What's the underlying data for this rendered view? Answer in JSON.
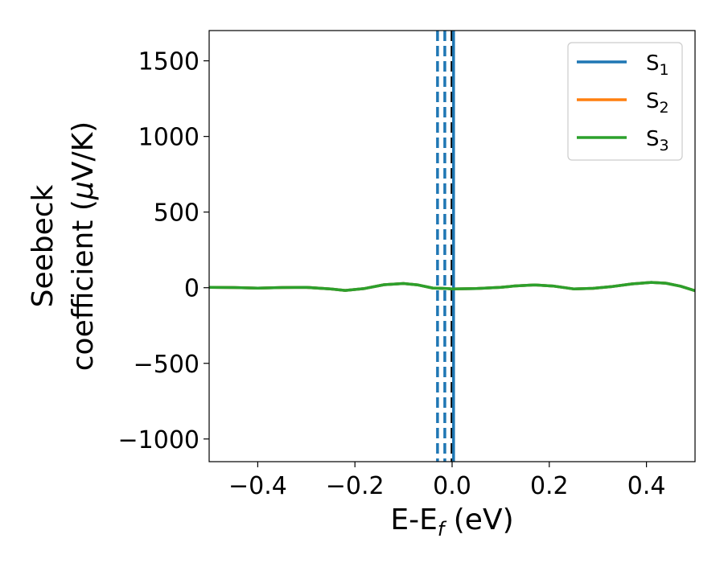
{
  "chart_data": {
    "type": "line",
    "title": "",
    "xlabel": "E-E",
    "xlabel_sub": "f",
    "xlabel_unit": " (eV)",
    "ylabel_line1": "Seebeck",
    "ylabel_line2": "coefficient  (",
    "ylabel_mu": "μ",
    "ylabel_unit": "V/K)",
    "xlim": [
      -0.5,
      0.5
    ],
    "ylim": [
      -1150,
      1700
    ],
    "xticks": [
      -0.4,
      -0.2,
      0.0,
      0.2,
      0.4
    ],
    "xtick_labels": [
      "−0.4",
      "−0.2",
      "0.0",
      "0.2",
      "0.4"
    ],
    "yticks": [
      -1000,
      -500,
      0,
      500,
      1000,
      1500
    ],
    "ytick_labels": [
      "−1000",
      "−500",
      "0",
      "500",
      "1000",
      "1500"
    ],
    "grid": false,
    "legend_position": "top-right",
    "series": [
      {
        "name": "S",
        "sub": "1",
        "color": "#1f77b4",
        "x": [
          -0.5,
          -0.45,
          -0.4,
          -0.35,
          -0.3,
          -0.25,
          -0.22,
          -0.18,
          -0.14,
          -0.1,
          -0.07,
          -0.04,
          -0.01,
          0.0,
          0.05,
          0.1,
          0.13,
          0.17,
          0.21,
          0.25,
          0.29,
          0.33,
          0.37,
          0.41,
          0.44,
          0.47,
          0.5
        ],
        "y": [
          2,
          1,
          -3,
          1,
          2,
          -8,
          -18,
          -5,
          20,
          28,
          18,
          -2,
          -5,
          -8,
          -5,
          2,
          12,
          18,
          10,
          -8,
          -4,
          8,
          25,
          35,
          30,
          10,
          -20
        ]
      },
      {
        "name": "S",
        "sub": "2",
        "color": "#ff7f0e",
        "x": [
          -0.5,
          -0.45,
          -0.4,
          -0.35,
          -0.3,
          -0.25,
          -0.22,
          -0.18,
          -0.14,
          -0.1,
          -0.07,
          -0.04,
          -0.01,
          0.0,
          0.05,
          0.1,
          0.13,
          0.17,
          0.21,
          0.25,
          0.29,
          0.33,
          0.37,
          0.41,
          0.44,
          0.47,
          0.5
        ],
        "y": [
          2,
          1,
          -3,
          1,
          2,
          -8,
          -18,
          -5,
          20,
          28,
          18,
          -2,
          -5,
          -8,
          -5,
          2,
          12,
          18,
          10,
          -8,
          -4,
          8,
          25,
          35,
          30,
          10,
          -20
        ]
      },
      {
        "name": "S",
        "sub": "3",
        "color": "#2ca02c",
        "x": [
          -0.5,
          -0.45,
          -0.4,
          -0.35,
          -0.3,
          -0.25,
          -0.22,
          -0.18,
          -0.14,
          -0.1,
          -0.07,
          -0.04,
          -0.01,
          0.0,
          0.05,
          0.1,
          0.13,
          0.17,
          0.21,
          0.25,
          0.29,
          0.33,
          0.37,
          0.41,
          0.44,
          0.47,
          0.5
        ],
        "y": [
          2,
          1,
          -3,
          1,
          2,
          -8,
          -18,
          -5,
          20,
          28,
          18,
          -2,
          -5,
          -8,
          -5,
          2,
          12,
          18,
          10,
          -8,
          -4,
          8,
          25,
          35,
          30,
          10,
          -20
        ]
      }
    ],
    "vertical_lines": [
      {
        "x": -0.03,
        "style": "dashed",
        "color": "#1f77b4"
      },
      {
        "x": -0.015,
        "style": "dashed",
        "color": "#1f77b4"
      },
      {
        "x": 0.0,
        "style": "dashed",
        "color": "#000000"
      },
      {
        "x": 0.003,
        "style": "solid",
        "color": "#1f77b4"
      }
    ]
  }
}
